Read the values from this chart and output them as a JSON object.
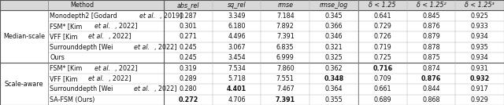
{
  "col_headers": [
    "Method",
    "abs_rel",
    "sq_rel",
    "rmse",
    "rmse_log",
    "δ < 1.25",
    "δ < 1.25²",
    "δ < 1.25³"
  ],
  "row_group1_label": "Median-scale",
  "row_group2_label": "Scale-aware",
  "rows_g1": [
    [
      "Monodepth2 [Godard ",
      "et al.",
      ", 2019]",
      "0.287",
      "3.349",
      "7.184",
      "0.345",
      "0.641",
      "0.845",
      "0.925",
      false,
      false,
      false,
      false,
      false,
      false,
      false
    ],
    [
      "FSM* [Kim ",
      "et al.",
      ", 2022]",
      "0.301",
      "6.180",
      "7.892",
      "0.366",
      "0.729",
      "0.876",
      "0.933",
      false,
      false,
      false,
      false,
      false,
      false,
      false
    ],
    [
      "VFF [Kim ",
      "et al.",
      ", 2022]",
      "0.271",
      "4.496",
      "7.391",
      "0.346",
      "0.726",
      "0.879",
      "0.934",
      false,
      false,
      false,
      false,
      false,
      false,
      false
    ],
    [
      "Surrounddepth [Wei ",
      "et al.",
      ", 2022]",
      "0.245",
      "3.067",
      "6.835",
      "0.321",
      "0.719",
      "0.878",
      "0.935",
      false,
      false,
      false,
      false,
      false,
      false,
      false
    ],
    [
      "Ours",
      "",
      "",
      "0.245",
      "3.454",
      "6.999",
      "0.325",
      "0.725",
      "0.875",
      "0.934",
      false,
      false,
      false,
      false,
      false,
      false,
      false
    ]
  ],
  "rows_g2": [
    [
      "FSM* [Kim ",
      "et al.",
      ", 2022]",
      "0.319",
      "7.534",
      "7.860",
      "0.362",
      "0.716",
      "0.874",
      "0.931",
      false,
      false,
      false,
      false,
      true,
      false,
      false
    ],
    [
      "VFF [Kim ",
      "et al.",
      ", 2022]",
      "0.289",
      "5.718",
      "7.551",
      "0.348",
      "0.709",
      "0.876",
      "0.932",
      false,
      false,
      false,
      true,
      false,
      true,
      true
    ],
    [
      "Surrounddepth [Wei ",
      "et al.",
      ", 2022]",
      "0.280",
      "4.401",
      "7.467",
      "0.364",
      "0.661",
      "0.844",
      "0.917",
      false,
      true,
      false,
      false,
      false,
      false,
      false
    ],
    [
      "SA-FSM (Ours)",
      "",
      "",
      "0.272",
      "4.706",
      "7.391",
      "0.355",
      "0.689",
      "0.868",
      "0.929",
      true,
      false,
      true,
      false,
      false,
      false,
      false
    ]
  ],
  "group1_count": 5,
  "group2_count": 4,
  "font_size": 5.8,
  "header_bg": "#d8d8d8",
  "row_bg": "#ffffff",
  "text_color": "#111111"
}
